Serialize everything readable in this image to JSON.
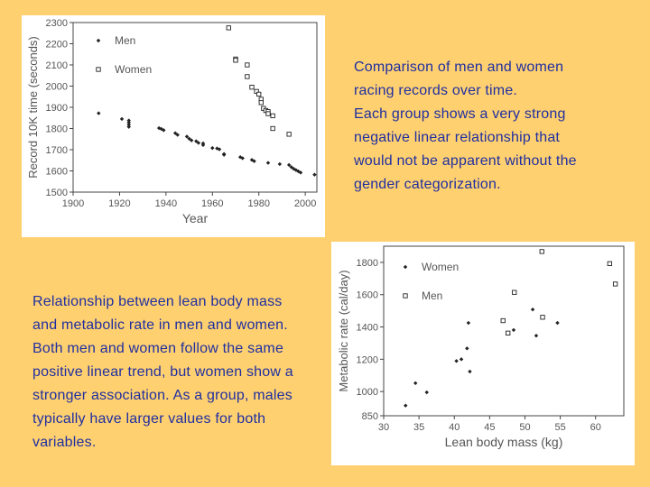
{
  "colors": {
    "background": "#FFD070",
    "caption_text": "#1f2fa0",
    "axis": "#444444",
    "marker": "#222222"
  },
  "captions": {
    "top_right": [
      "Comparison of men and women",
      "racing records over time.",
      "Each group shows a very strong",
      "negative linear relationship that",
      "would not be apparent without the",
      "gender categorization."
    ],
    "bottom_left": [
      "Relationship between lean body mass",
      "and metabolic rate in men and women.",
      "Both men and women follow the same",
      "positive linear trend, but women show a",
      "stronger association. As a group, males",
      "typically have larger values for both",
      "variables."
    ]
  },
  "chart_data": [
    {
      "type": "scatter",
      "xlabel": "Year",
      "ylabel": "Record 10K time (seconds)",
      "xlim": [
        1900,
        2005
      ],
      "ylim": [
        1500,
        2300
      ],
      "xticks": [
        "1900",
        "1920",
        "1940",
        "1960",
        "1980",
        "2000"
      ],
      "yticks": [
        "1500",
        "1600",
        "1700",
        "1800",
        "1900",
        "2000",
        "2100",
        "2200",
        "2300"
      ],
      "legend": [
        {
          "name": "Men",
          "marker": "filled"
        },
        {
          "name": "Women",
          "marker": "open"
        }
      ],
      "series": [
        {
          "name": "Men",
          "points": [
            [
              1911,
              1872
            ],
            [
              1921,
              1845
            ],
            [
              1924,
              1838
            ],
            [
              1924,
              1828
            ],
            [
              1924,
              1818
            ],
            [
              1924,
              1808
            ],
            [
              1937,
              1802
            ],
            [
              1938,
              1798
            ],
            [
              1939,
              1792
            ],
            [
              1944,
              1778
            ],
            [
              1945,
              1770
            ],
            [
              1949,
              1762
            ],
            [
              1950,
              1752
            ],
            [
              1951,
              1744
            ],
            [
              1953,
              1740
            ],
            [
              1954,
              1732
            ],
            [
              1956,
              1730
            ],
            [
              1956,
              1722
            ],
            [
              1960,
              1708
            ],
            [
              1962,
              1706
            ],
            [
              1963,
              1702
            ],
            [
              1965,
              1680
            ],
            [
              1965,
              1676
            ],
            [
              1972,
              1665
            ],
            [
              1973,
              1660
            ],
            [
              1977,
              1652
            ],
            [
              1978,
              1646
            ],
            [
              1984,
              1638
            ],
            [
              1989,
              1632
            ],
            [
              1993,
              1628
            ],
            [
              1994,
              1618
            ],
            [
              1995,
              1610
            ],
            [
              1996,
              1604
            ],
            [
              1997,
              1598
            ],
            [
              1998,
              1592
            ],
            [
              2004,
              1582
            ]
          ]
        },
        {
          "name": "Women",
          "points": [
            [
              1967,
              2275
            ],
            [
              1970,
              2128
            ],
            [
              1970,
              2122
            ],
            [
              1975,
              2100
            ],
            [
              1975,
              2045
            ],
            [
              1977,
              1995
            ],
            [
              1979,
              1975
            ],
            [
              1980,
              1962
            ],
            [
              1981,
              1938
            ],
            [
              1981,
              1922
            ],
            [
              1982,
              1895
            ],
            [
              1983,
              1885
            ],
            [
              1984,
              1880
            ],
            [
              1984,
              1870
            ],
            [
              1986,
              1860
            ],
            [
              1986,
              1800
            ],
            [
              1993,
              1773
            ]
          ]
        }
      ]
    },
    {
      "type": "scatter",
      "xlabel": "Lean body mass (kg)",
      "ylabel": "Metabolic rate (cal/day)",
      "xlim": [
        30,
        64
      ],
      "ylim": [
        850,
        1900
      ],
      "xticks": [
        "30",
        "35",
        "40",
        "45",
        "50",
        "55",
        "60"
      ],
      "yticks": [
        "850",
        "1000",
        "1200",
        "1400",
        "1600",
        "1800"
      ],
      "legend": [
        {
          "name": "Women",
          "marker": "filled"
        },
        {
          "name": "Men",
          "marker": "open"
        }
      ],
      "series": [
        {
          "name": "Women",
          "points": [
            [
              33.1,
              913
            ],
            [
              34.5,
              1052
            ],
            [
              36.1,
              995
            ],
            [
              40.3,
              1189
            ],
            [
              41.0,
              1200
            ],
            [
              41.8,
              1267
            ],
            [
              42.2,
              1124
            ],
            [
              42.0,
              1425
            ],
            [
              48.4,
              1381
            ],
            [
              51.1,
              1508
            ],
            [
              51.6,
              1346
            ],
            [
              54.6,
              1425
            ]
          ]
        },
        {
          "name": "Men",
          "points": [
            [
              46.9,
              1439
            ],
            [
              47.6,
              1362
            ],
            [
              48.5,
              1614
            ],
            [
              52.5,
              1460
            ],
            [
              52.4,
              1867
            ],
            [
              62.0,
              1792
            ],
            [
              62.8,
              1666
            ]
          ]
        }
      ]
    }
  ]
}
